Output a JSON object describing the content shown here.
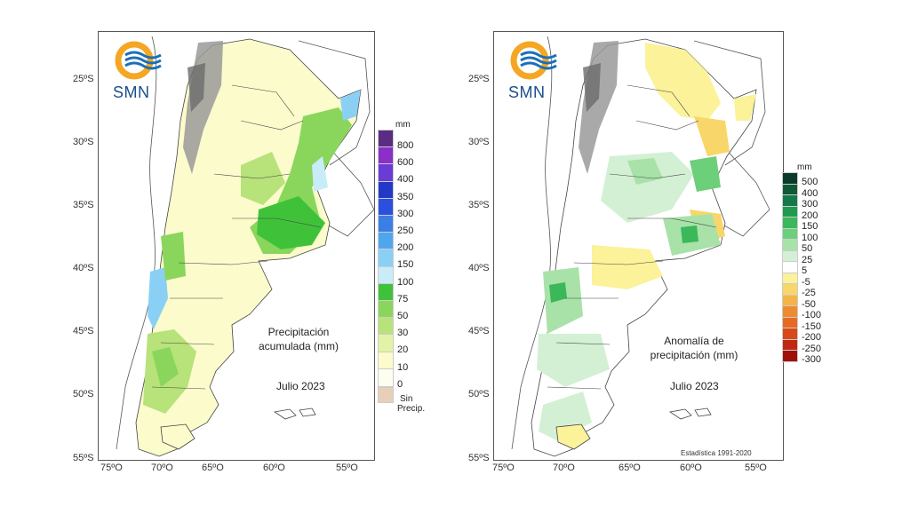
{
  "logo": {
    "text": "SMN"
  },
  "left_map": {
    "caption_line1": "Precipitación",
    "caption_line2": "acumulada (mm)",
    "month": "Julio 2023",
    "legend": {
      "unit": "mm",
      "entries": [
        {
          "label": "800",
          "color": "#5a2d82"
        },
        {
          "label": "600",
          "color": "#8a2fc8"
        },
        {
          "label": "400",
          "color": "#6a3bd6"
        },
        {
          "label": "350",
          "color": "#2438c8"
        },
        {
          "label": "300",
          "color": "#2a50e0"
        },
        {
          "label": "250",
          "color": "#3b7ee6"
        },
        {
          "label": "200",
          "color": "#4fa6ef"
        },
        {
          "label": "150",
          "color": "#8ad0f5"
        },
        {
          "label": "100",
          "color": "#c8ecf8"
        },
        {
          "label": "75",
          "color": "#3fc23a"
        },
        {
          "label": "50",
          "color": "#8ad65c"
        },
        {
          "label": "30",
          "color": "#b8e27a"
        },
        {
          "label": "20",
          "color": "#e2f2a6"
        },
        {
          "label": "10",
          "color": "#fbfbcc"
        },
        {
          "label": "0",
          "color": "#fdfdf0"
        }
      ],
      "no_precip_line1": "Sin",
      "no_precip_line2": "Precip.",
      "no_precip_color": "#e8d0b8"
    }
  },
  "right_map": {
    "caption_line1": "Anomalía de",
    "caption_line2": "precipitación (mm)",
    "month": "Julio 2023",
    "stats_note": "Estadística 1991-2020",
    "legend": {
      "unit": "mm",
      "entries": [
        {
          "label": "500",
          "color": "#0a3b2a"
        },
        {
          "label": "400",
          "color": "#0f5a36"
        },
        {
          "label": "300",
          "color": "#14784a"
        },
        {
          "label": "200",
          "color": "#1f9a4f"
        },
        {
          "label": "150",
          "color": "#3ab85a"
        },
        {
          "label": "100",
          "color": "#6ccf7a"
        },
        {
          "label": "50",
          "color": "#a8e2a8"
        },
        {
          "label": "25",
          "color": "#d4f0d4"
        },
        {
          "label": "5",
          "color": "#ffffff"
        },
        {
          "label": "-5",
          "color": "#fbf29a"
        },
        {
          "label": "-25",
          "color": "#f8d66a"
        },
        {
          "label": "-50",
          "color": "#f4b446"
        },
        {
          "label": "-100",
          "color": "#ef8a2e"
        },
        {
          "label": "-150",
          "color": "#e86a22"
        },
        {
          "label": "-200",
          "color": "#d84818"
        },
        {
          "label": "-250",
          "color": "#c02810"
        },
        {
          "label": "-300",
          "color": "#a01008"
        }
      ]
    }
  },
  "axes": {
    "lat_labels": [
      "25ºS",
      "30ºS",
      "35ºS",
      "40ºS",
      "45ºS",
      "50ºS",
      "55ºS"
    ],
    "lon_labels": [
      "75ºO",
      "70ºO",
      "65ºO",
      "60ºO",
      "55ºO"
    ]
  },
  "colors": {
    "logo_orange": "#f5a623",
    "logo_blue": "#1a6fb8",
    "border": "#555555"
  }
}
